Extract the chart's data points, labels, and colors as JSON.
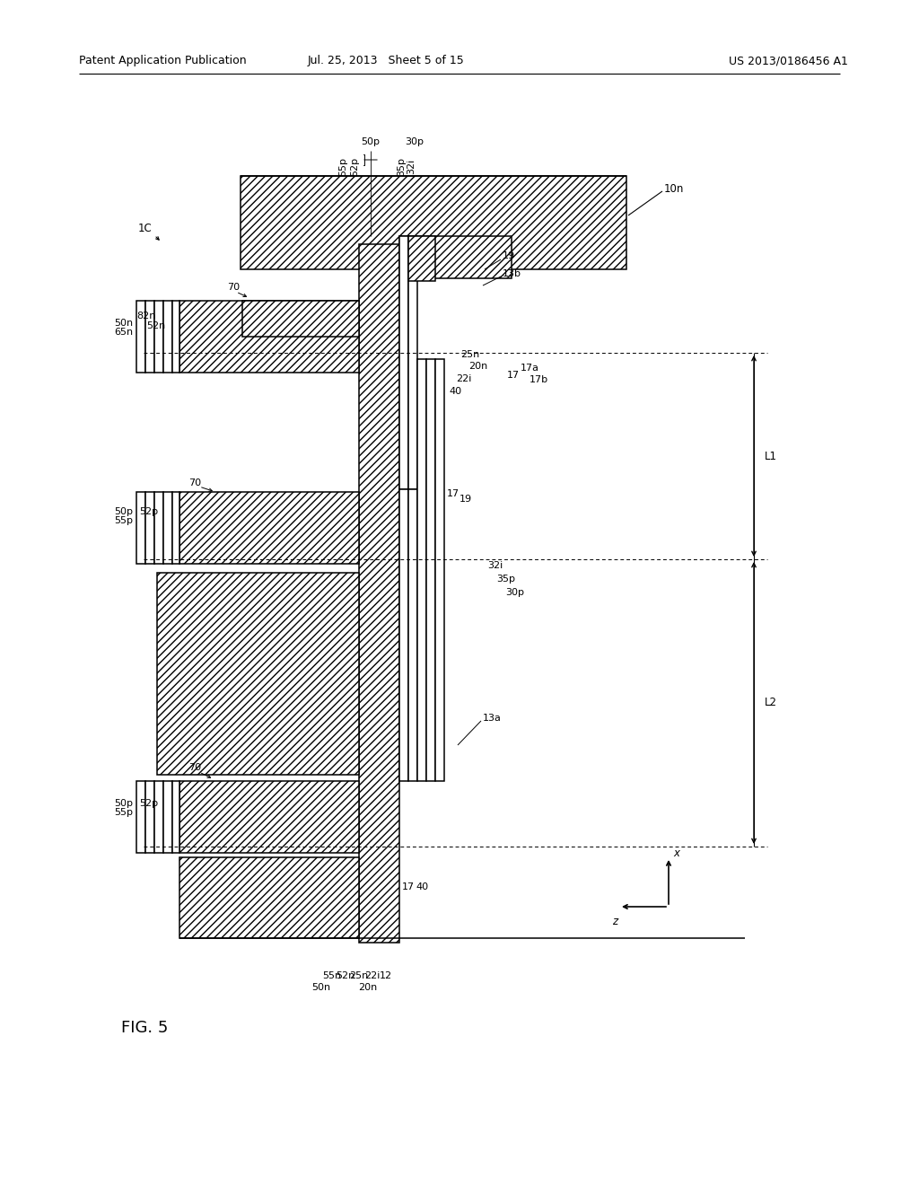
{
  "header_left": "Patent Application Publication",
  "header_mid": "Jul. 25, 2013   Sheet 5 of 15",
  "header_right": "US 2013/0186456 A1",
  "fig_label": "FIG. 5",
  "bg_color": "#ffffff"
}
